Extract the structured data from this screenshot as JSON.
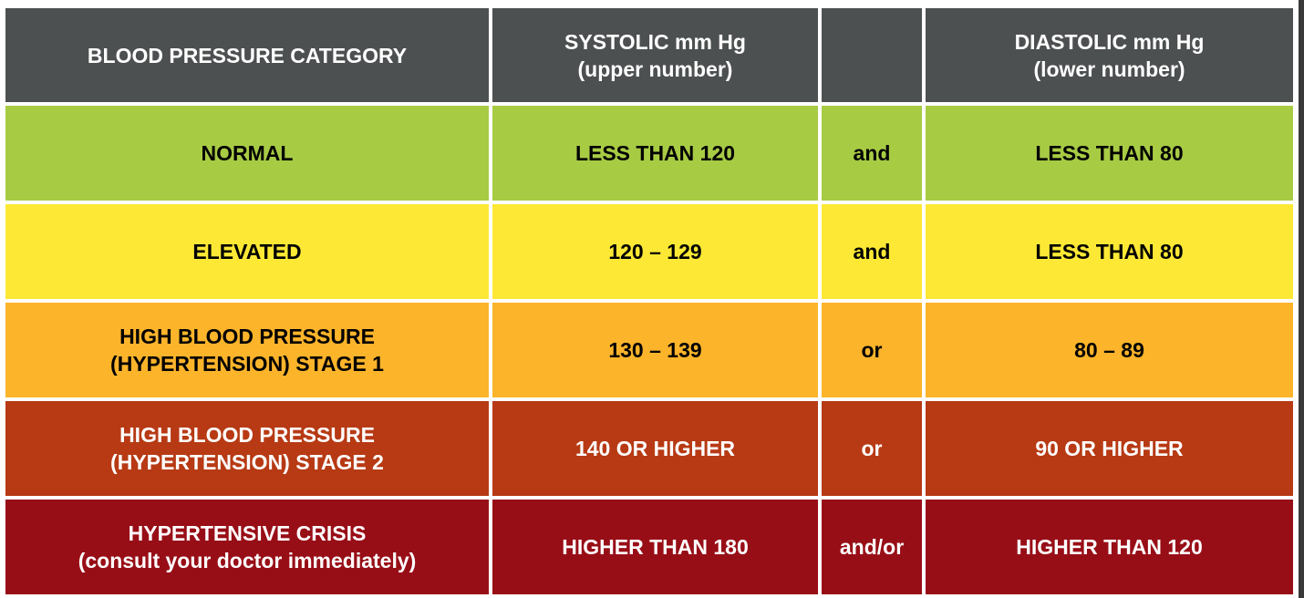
{
  "colors": {
    "header": "#4d5051",
    "normal": "#a8cb44",
    "elevated": "#fde935",
    "stage1": "#fcb42b",
    "stage2": "#b73a14",
    "crisis": "#980e17"
  },
  "header": {
    "category": "BLOOD PRESSURE CATEGORY",
    "systolic_line1": "SYSTOLIC mm Hg",
    "systolic_line2": "(upper number)",
    "conjunction": "",
    "diastolic_line1": "DIASTOLIC mm Hg",
    "diastolic_line2": "(lower number)"
  },
  "rows": [
    {
      "category_line1": "NORMAL",
      "category_line2": "",
      "systolic": "LESS THAN 120",
      "conjunction": "and",
      "diastolic": "LESS THAN 80"
    },
    {
      "category_line1": "ELEVATED",
      "category_line2": "",
      "systolic": "120 – 129",
      "conjunction": "and",
      "diastolic": "LESS THAN 80"
    },
    {
      "category_line1": "HIGH BLOOD PRESSURE",
      "category_line2": "(HYPERTENSION) STAGE 1",
      "systolic": "130 – 139",
      "conjunction": "or",
      "diastolic": "80 – 89"
    },
    {
      "category_line1": "HIGH BLOOD PRESSURE",
      "category_line2": "(HYPERTENSION) STAGE 2",
      "systolic": "140 OR HIGHER",
      "conjunction": "or",
      "diastolic": "90 OR HIGHER"
    },
    {
      "category_line1": "HYPERTENSIVE CRISIS",
      "category_line2": "(consult your doctor immediately)",
      "systolic": "HIGHER THAN 180",
      "conjunction": "and/or",
      "diastolic": "HIGHER THAN 120"
    }
  ]
}
